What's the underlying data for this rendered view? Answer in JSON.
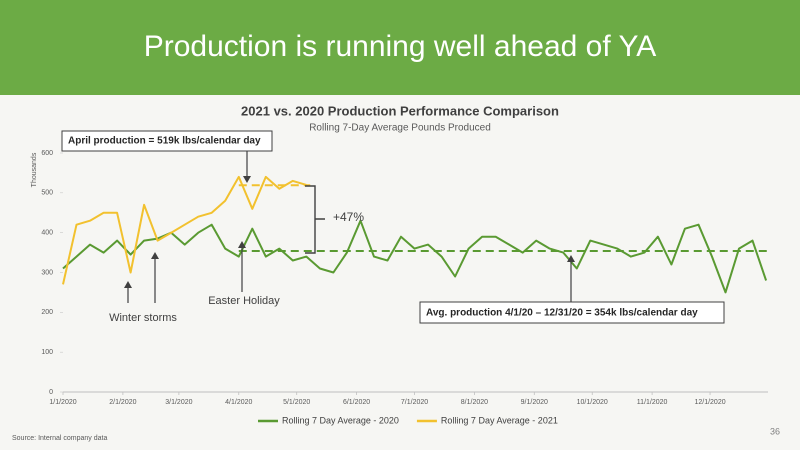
{
  "header": {
    "title": "Production is running well ahead of YA"
  },
  "chart_data": {
    "type": "line",
    "title": "2021 vs. 2020 Production Performance Comparison",
    "subtitle": "Rolling 7-Day Average Pounds Produced",
    "y_label": "Thousands",
    "x": [
      "1/1/2020",
      "1/8/2020",
      "1/15/2020",
      "1/22/2020",
      "1/29/2020",
      "2/5/2020",
      "2/12/2020",
      "2/19/2020",
      "2/26/2020",
      "3/4/2020",
      "3/11/2020",
      "3/18/2020",
      "3/25/2020",
      "4/1/2020",
      "4/8/2020",
      "4/15/2020",
      "4/22/2020",
      "4/29/2020",
      "5/6/2020",
      "5/13/2020",
      "5/20/2020",
      "5/27/2020",
      "6/3/2020",
      "6/10/2020",
      "6/17/2020",
      "6/24/2020",
      "7/1/2020",
      "7/8/2020",
      "7/15/2020",
      "7/22/2020",
      "7/29/2020",
      "8/5/2020",
      "8/12/2020",
      "8/19/2020",
      "8/26/2020",
      "9/2/2020",
      "9/9/2020",
      "9/16/2020",
      "9/23/2020",
      "9/30/2020",
      "10/7/2020",
      "10/14/2020",
      "10/21/2020",
      "10/28/2020",
      "11/4/2020",
      "11/11/2020",
      "11/18/2020",
      "11/25/2020",
      "12/2/2020",
      "12/9/2020",
      "12/16/2020",
      "12/23/2020",
      "12/30/2020"
    ],
    "series": [
      {
        "name": "Rolling 7 Day Average - 2020",
        "color": "#5a9a32",
        "values": [
          310,
          340,
          370,
          350,
          380,
          345,
          380,
          385,
          400,
          370,
          400,
          420,
          360,
          340,
          410,
          340,
          360,
          330,
          340,
          310,
          300,
          350,
          430,
          340,
          330,
          390,
          360,
          370,
          340,
          290,
          360,
          390,
          390,
          370,
          350,
          380,
          360,
          350,
          310,
          380,
          370,
          360,
          340,
          350,
          390,
          320,
          410,
          420,
          340,
          250,
          360,
          380,
          280
        ]
      },
      {
        "name": "Rolling 7 Day Average - 2021",
        "color": "#f2c12e",
        "values": [
          270,
          420,
          430,
          450,
          450,
          300,
          470,
          380,
          400,
          420,
          440,
          450,
          480,
          540,
          460,
          540,
          510,
          530,
          520,
          null,
          null,
          null,
          null,
          null,
          null,
          null,
          null,
          null,
          null,
          null,
          null,
          null,
          null,
          null,
          null,
          null,
          null,
          null,
          null,
          null,
          null,
          null,
          null,
          null,
          null,
          null,
          null,
          null,
          null,
          null,
          null,
          null,
          null
        ]
      }
    ],
    "xlim": [
      "1/1/2020",
      "12/31/2020"
    ],
    "xticks": [
      "1/1/2020",
      "2/1/2020",
      "3/1/2020",
      "4/1/2020",
      "5/1/2020",
      "6/1/2020",
      "7/1/2020",
      "8/1/2020",
      "9/1/2020",
      "10/1/2020",
      "11/1/2020",
      "12/1/2020"
    ],
    "ylim": [
      0,
      600
    ],
    "yticks": [
      0,
      100,
      200,
      300,
      400,
      500,
      600
    ],
    "reference_lines": [
      {
        "value": 519,
        "color": "#f2c12e",
        "from": "4/1/2020",
        "to": "5/8/2020"
      },
      {
        "value": 354,
        "color": "#5a9a32",
        "from": "4/1/2020",
        "to": "12/31/2020"
      }
    ],
    "annotations": [
      "April production = 519k lbs/calendar day",
      "+47%",
      "Winter storms",
      "Easter Holiday",
      "Avg. production 4/1/20 – 12/31/20 = 354k lbs/calendar day"
    ],
    "legend": "bottom"
  },
  "footer": {
    "source": "Source:  Internal company data",
    "page": "36"
  }
}
